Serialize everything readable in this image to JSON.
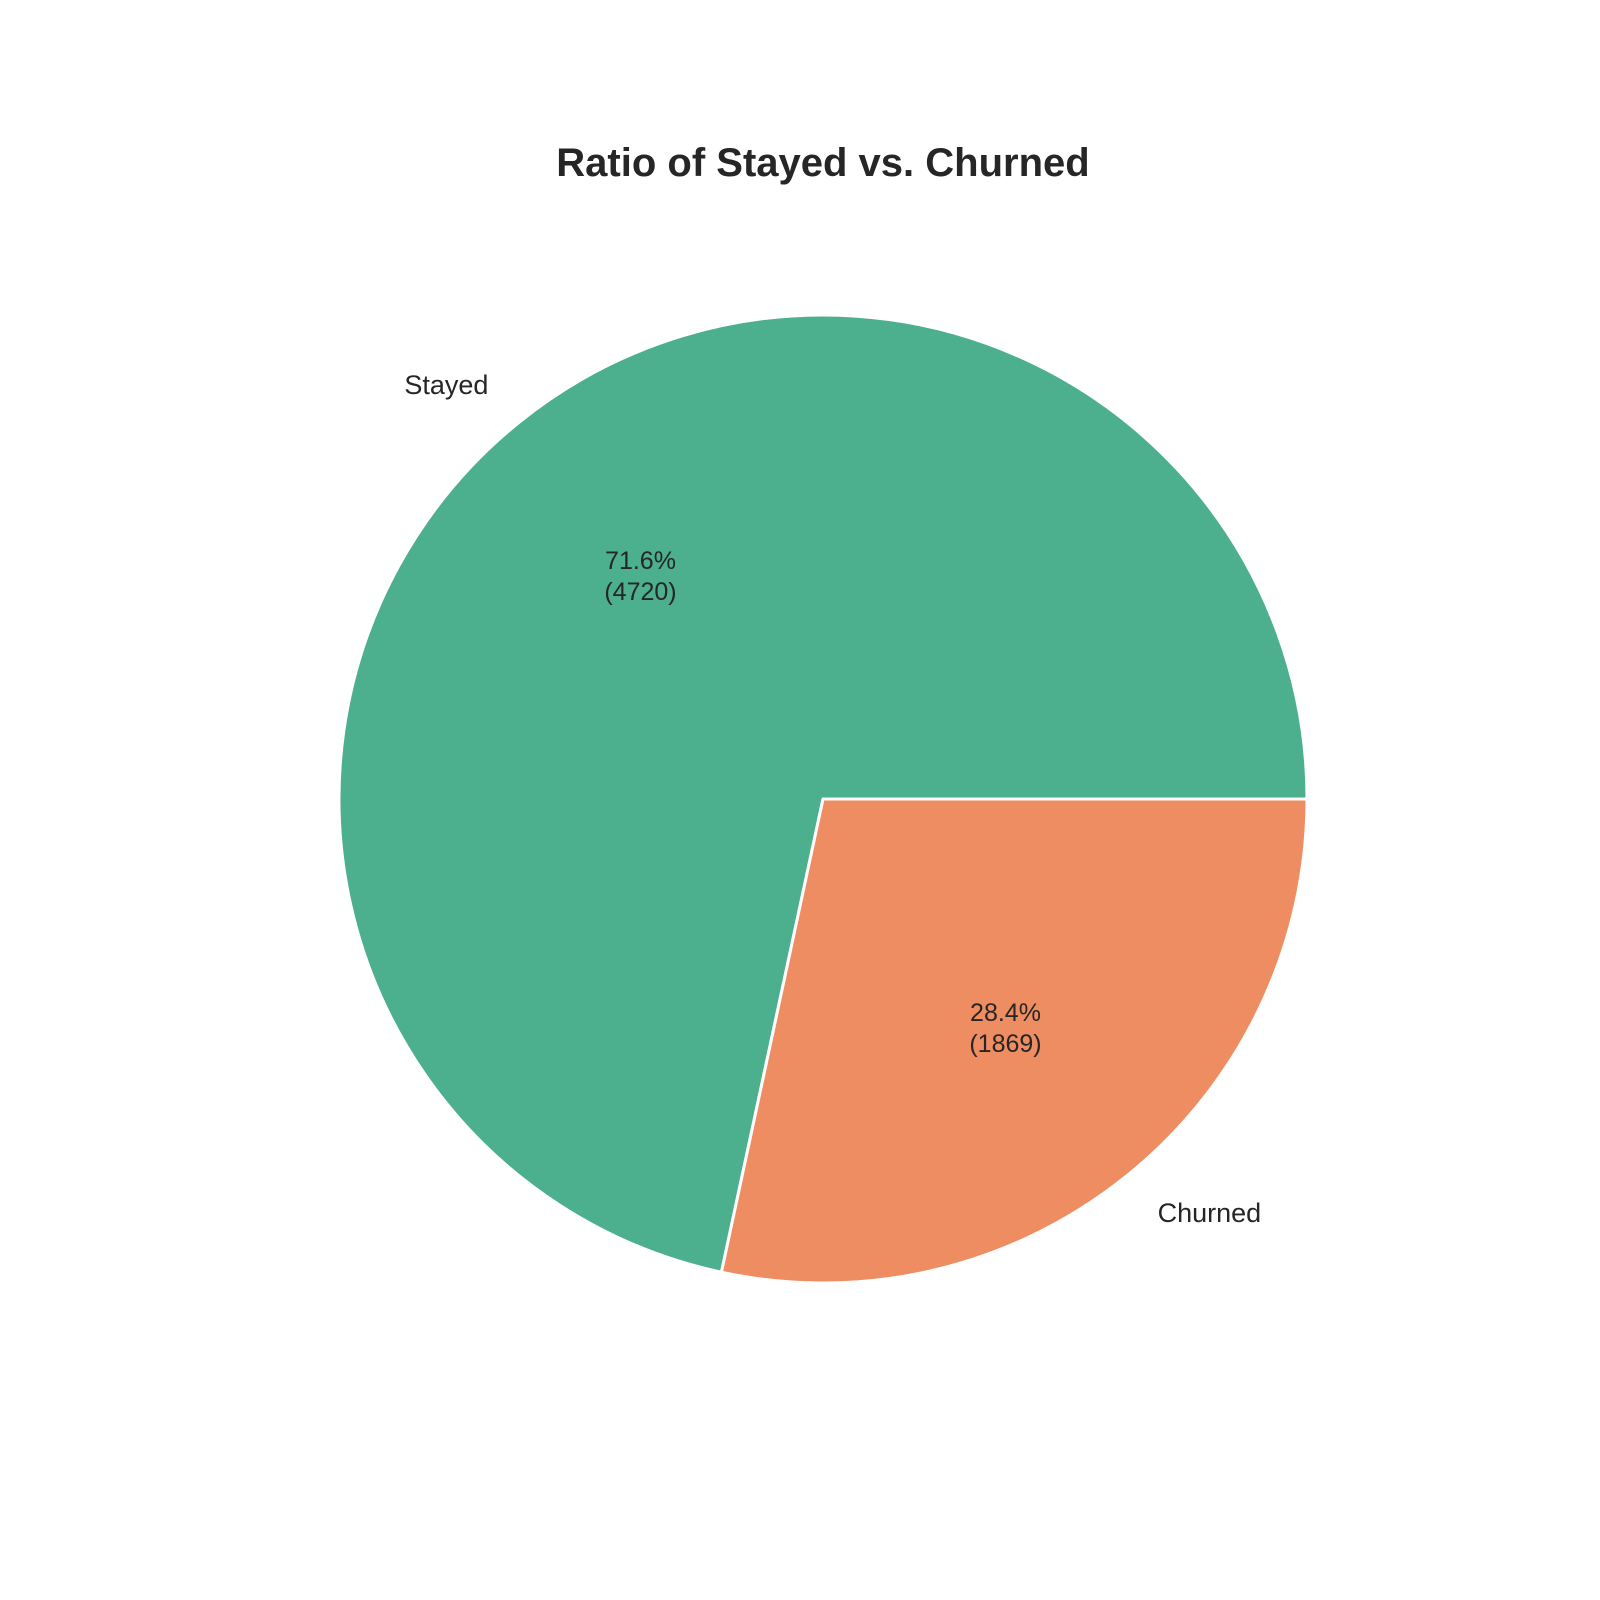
{
  "chart_data": {
    "type": "pie",
    "title": "Ratio of Stayed vs. Churned",
    "start_angle_deg": 0,
    "direction": "counterclockwise",
    "slices": [
      {
        "label": "Stayed",
        "value": 4720,
        "percent_label": "71.6%",
        "count_label": "(4720)",
        "color": "#4caf8d"
      },
      {
        "label": "Churned",
        "value": 1869,
        "percent_label": "28.4%",
        "count_label": "(1869)",
        "color": "#ee8c62"
      }
    ]
  }
}
